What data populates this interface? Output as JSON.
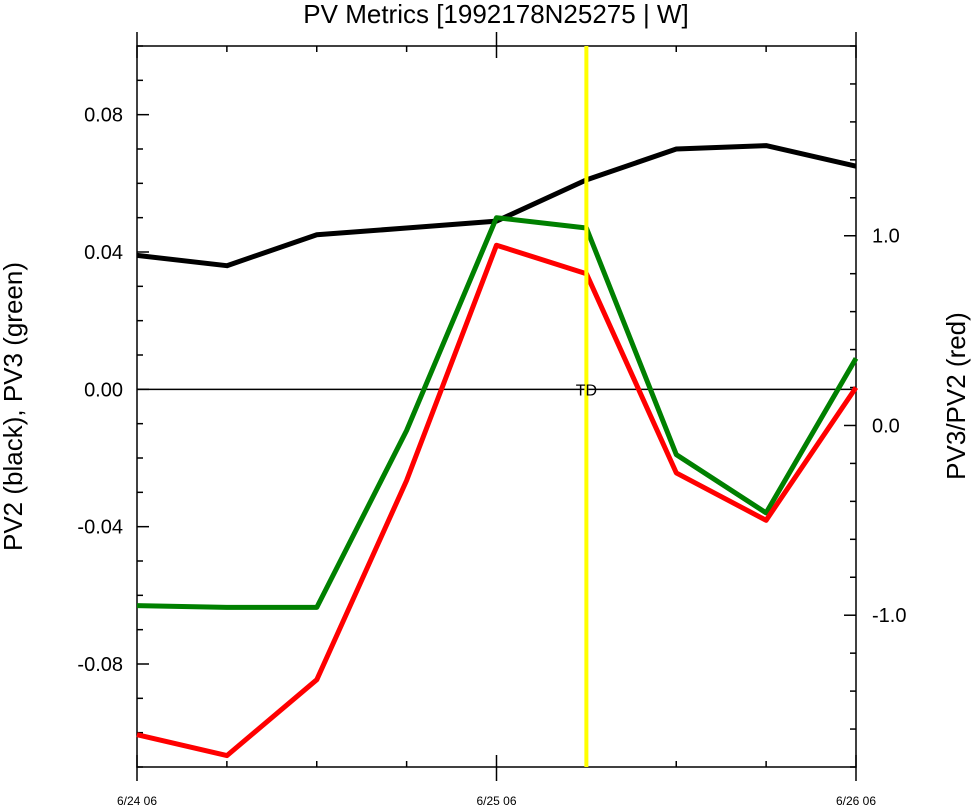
{
  "chart_data": {
    "type": "line",
    "title": "PV Metrics [1992178N25275 | W]",
    "ylabel_left": "PV2 (black), PV3 (green)",
    "ylabel_right": "PV3/PV2 (red)",
    "x_tick_labels": [
      "6/24 06",
      "6/25 06",
      "6/26 06"
    ],
    "x_ticks": [
      0,
      4,
      8
    ],
    "xlim": [
      0,
      8
    ],
    "ylim_left": [
      -0.11,
      0.1
    ],
    "ylim_right": [
      -1.8,
      2.0
    ],
    "left_ticks": [
      -0.08,
      -0.04,
      0.0,
      0.04,
      0.08
    ],
    "left_tick_labels": [
      "-0.08",
      "-0.04",
      "0.00",
      "0.04",
      "0.08"
    ],
    "right_ticks": [
      -1.0,
      0.0,
      1.0
    ],
    "right_tick_labels": [
      "-1.0",
      "0.0",
      "1.0"
    ],
    "x": [
      0,
      1,
      2,
      3,
      4,
      5,
      6,
      7,
      8
    ],
    "series": [
      {
        "name": "PV2",
        "axis": "left",
        "color": "#000000",
        "values": [
          0.039,
          0.036,
          0.045,
          0.047,
          0.049,
          0.061,
          0.07,
          0.071,
          0.065
        ]
      },
      {
        "name": "PV3",
        "axis": "left",
        "color": "#008000",
        "values": [
          -0.063,
          -0.0635,
          -0.0635,
          -0.012,
          0.05,
          0.047,
          -0.019,
          -0.036,
          0.009
        ]
      },
      {
        "name": "PV3/PV2",
        "axis": "right",
        "color": "#ff0000",
        "values": [
          -1.63,
          -1.74,
          -1.34,
          -0.29,
          0.95,
          0.8,
          -0.25,
          -0.5,
          0.2
        ]
      }
    ],
    "zero_line": {
      "axis": "left",
      "value": 0,
      "color": "#000000"
    },
    "vertical_marker": {
      "x": 5,
      "color": "#ffff00",
      "label": "TD"
    },
    "grid": false,
    "legend": "none"
  }
}
